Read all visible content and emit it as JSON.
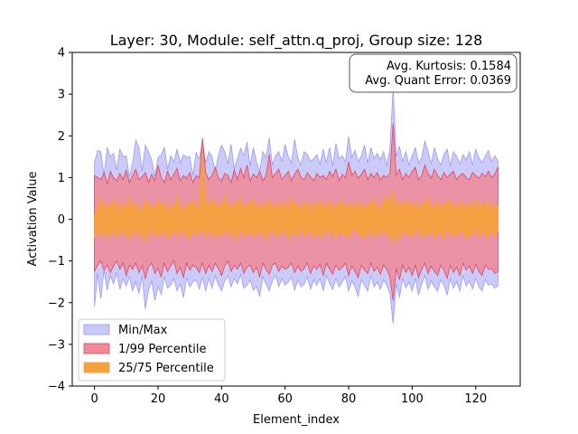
{
  "chart_data": {
    "type": "area",
    "title": "Layer: 30, Module: self_attn.q_proj,  Group size: 128",
    "xlabel": "Element_index",
    "ylabel": "Activation Value",
    "xlim": [
      -7,
      134
    ],
    "ylim": [
      -4,
      4
    ],
    "xticks": [
      0,
      20,
      40,
      60,
      80,
      100,
      120
    ],
    "yticks": [
      -4,
      -3,
      -2,
      -1,
      0,
      1,
      2,
      3,
      4
    ],
    "grid": false,
    "legend_position": "bottom-left",
    "annotation": {
      "lines": [
        "Avg. Kurtosis: 0.1584",
        "Avg. Quant Error: 0.0369"
      ],
      "position": "top-right"
    },
    "x": [
      0,
      1,
      2,
      3,
      4,
      5,
      6,
      7,
      8,
      9,
      10,
      11,
      12,
      13,
      14,
      15,
      16,
      17,
      18,
      19,
      20,
      21,
      22,
      23,
      24,
      25,
      26,
      27,
      28,
      29,
      30,
      31,
      32,
      33,
      34,
      35,
      36,
      37,
      38,
      39,
      40,
      41,
      42,
      43,
      44,
      45,
      46,
      47,
      48,
      49,
      50,
      51,
      52,
      53,
      54,
      55,
      56,
      57,
      58,
      59,
      60,
      61,
      62,
      63,
      64,
      65,
      66,
      67,
      68,
      69,
      70,
      71,
      72,
      73,
      74,
      75,
      76,
      77,
      78,
      79,
      80,
      81,
      82,
      83,
      84,
      85,
      86,
      87,
      88,
      89,
      90,
      91,
      92,
      93,
      94,
      95,
      96,
      97,
      98,
      99,
      100,
      101,
      102,
      103,
      104,
      105,
      106,
      107,
      108,
      109,
      110,
      111,
      112,
      113,
      114,
      115,
      116,
      117,
      118,
      119,
      120,
      121,
      122,
      123,
      124,
      125,
      126,
      127
    ],
    "series": [
      {
        "name": "Min/Max",
        "color": "#c8c8fa",
        "edge_color": "#9a9af0",
        "upper": [
          1.35,
          1.65,
          1.62,
          1.05,
          1.72,
          1.5,
          1.58,
          1.18,
          1.68,
          1.5,
          1.52,
          1.02,
          1.35,
          1.9,
          1.72,
          1.15,
          1.78,
          1.62,
          1.42,
          1.02,
          1.48,
          1.55,
          1.72,
          1.2,
          1.52,
          1.38,
          1.68,
          1.35,
          1.55,
          1.48,
          1.5,
          1.05,
          1.6,
          1.45,
          1.88,
          1.35,
          1.62,
          1.5,
          1.15,
          1.52,
          1.78,
          1.62,
          1.32,
          1.8,
          1.2,
          1.45,
          1.7,
          1.52,
          1.85,
          1.28,
          1.72,
          1.38,
          1.15,
          1.62,
          1.48,
          1.95,
          1.3,
          1.52,
          1.62,
          1.38,
          1.8,
          1.5,
          1.35,
          1.92,
          1.48,
          1.3,
          1.62,
          1.55,
          1.38,
          1.45,
          1.55,
          1.32,
          1.68,
          1.35,
          1.72,
          1.28,
          1.82,
          1.45,
          1.52,
          1.38,
          1.98,
          1.48,
          1.65,
          1.38,
          1.52,
          1.78,
          1.35,
          1.72,
          1.45,
          1.58,
          1.42,
          1.62,
          1.28,
          1.7,
          3.15,
          1.5,
          1.75,
          1.38,
          1.62,
          1.3,
          1.52,
          1.72,
          1.35,
          1.48,
          1.88,
          1.62,
          1.32,
          1.72,
          1.45,
          1.3,
          1.55,
          1.68,
          1.28,
          1.62,
          1.5,
          1.32,
          1.55,
          1.42,
          1.62,
          1.3,
          1.68,
          1.48,
          1.35,
          1.52,
          1.65,
          1.38,
          1.52,
          1.4
        ],
        "lower": [
          -2.1,
          -1.3,
          -1.9,
          -1.22,
          -1.7,
          -1.35,
          -1.55,
          -1.28,
          -1.68,
          -1.42,
          -1.6,
          -1.38,
          -1.72,
          -1.5,
          -1.78,
          -1.35,
          -2.15,
          -1.7,
          -1.48,
          -1.95,
          -1.62,
          -1.8,
          -1.38,
          -1.65,
          -1.58,
          -1.42,
          -1.72,
          -1.55,
          -1.88,
          -1.4,
          -1.62,
          -1.5,
          -1.45,
          -1.68,
          -1.38,
          -1.72,
          -1.42,
          -1.65,
          -1.35,
          -1.58,
          -1.72,
          -1.48,
          -1.35,
          -1.62,
          -1.42,
          -1.55,
          -1.32,
          -1.65,
          -1.58,
          -1.45,
          -1.7,
          -1.62,
          -1.85,
          -1.38,
          -1.55,
          -1.72,
          -1.48,
          -1.35,
          -1.62,
          -1.42,
          -1.58,
          -1.5,
          -1.38,
          -1.7,
          -1.45,
          -1.62,
          -1.55,
          -1.38,
          -1.68,
          -1.45,
          -1.58,
          -1.42,
          -1.72,
          -1.35,
          -1.55,
          -1.68,
          -1.42,
          -1.62,
          -1.5,
          -1.38,
          -1.72,
          -1.48,
          -1.62,
          -1.85,
          -1.45,
          -1.58,
          -1.72,
          -1.35,
          -1.62,
          -1.5,
          -1.68,
          -1.45,
          -1.58,
          -1.78,
          -2.5,
          -1.55,
          -1.88,
          -1.42,
          -1.65,
          -1.5,
          -1.72,
          -1.42,
          -1.82,
          -1.55,
          -1.35,
          -1.68,
          -1.48,
          -1.62,
          -1.72,
          -1.45,
          -1.58,
          -1.82,
          -1.42,
          -1.65,
          -1.5,
          -1.72,
          -1.35,
          -1.6,
          -1.48,
          -1.68,
          -1.42,
          -1.62,
          -1.72,
          -1.45,
          -1.58,
          -1.55,
          -1.65,
          -1.6
        ]
      },
      {
        "name": "1/99 Percentile",
        "color": "#f08a96",
        "edge_color": "#e04560",
        "upper": [
          1.05,
          1.0,
          0.95,
          1.12,
          0.85,
          1.15,
          1.0,
          0.92,
          1.1,
          0.95,
          1.18,
          0.88,
          1.05,
          1.2,
          0.95,
          1.02,
          1.12,
          0.88,
          1.08,
          0.92,
          1.3,
          1.0,
          0.88,
          1.15,
          0.95,
          1.08,
          1.22,
          0.92,
          1.05,
          0.98,
          1.12,
          0.88,
          1.05,
          1.0,
          1.95,
          1.12,
          0.95,
          1.05,
          1.25,
          1.0,
          0.92,
          1.1,
          1.05,
          0.88,
          1.18,
          0.95,
          1.22,
          1.0,
          1.3,
          0.92,
          1.08,
          1.0,
          1.15,
          0.92,
          1.05,
          1.55,
          1.0,
          1.1,
          1.2,
          0.95,
          1.05,
          1.15,
          0.92,
          1.08,
          1.2,
          1.0,
          0.95,
          1.12,
          1.02,
          0.92,
          1.1,
          1.0,
          1.05,
          0.95,
          1.15,
          1.02,
          1.2,
          0.92,
          1.08,
          1.0,
          1.38,
          1.05,
          1.15,
          0.98,
          1.08,
          1.2,
          0.95,
          1.1,
          1.0,
          1.12,
          0.95,
          1.05,
          1.0,
          1.1,
          2.3,
          1.05,
          1.2,
          0.95,
          1.1,
          1.0,
          1.15,
          1.25,
          0.95,
          1.05,
          1.3,
          1.1,
          0.98,
          1.2,
          1.05,
          0.95,
          1.12,
          1.0,
          1.08,
          1.15,
          0.95,
          1.05,
          1.1,
          1.0,
          0.95,
          1.12,
          1.05,
          0.98,
          1.1,
          1.02,
          1.15,
          1.0,
          1.08,
          1.25
        ],
        "lower": [
          -1.25,
          -1.1,
          -1.0,
          -1.22,
          -1.1,
          -1.28,
          -1.12,
          -1.0,
          -1.2,
          -1.05,
          -1.35,
          -1.1,
          -1.2,
          -1.05,
          -1.28,
          -1.12,
          -1.42,
          -1.15,
          -1.05,
          -1.3,
          -1.18,
          -1.38,
          -1.05,
          -1.25,
          -1.12,
          -1.0,
          -1.3,
          -1.15,
          -1.4,
          -1.05,
          -1.22,
          -1.1,
          -1.15,
          -1.28,
          -1.05,
          -1.3,
          -1.1,
          -1.25,
          -1.05,
          -1.18,
          -1.35,
          -1.12,
          -1.0,
          -1.25,
          -1.1,
          -1.2,
          -1.05,
          -1.3,
          -1.15,
          -1.1,
          -1.28,
          -1.15,
          -1.38,
          -1.05,
          -1.2,
          -1.32,
          -1.1,
          -1.05,
          -1.25,
          -1.12,
          -1.2,
          -1.15,
          -1.05,
          -1.28,
          -1.12,
          -1.25,
          -1.18,
          -1.05,
          -1.3,
          -1.12,
          -1.2,
          -1.08,
          -1.35,
          -1.05,
          -1.2,
          -1.32,
          -1.1,
          -1.22,
          -1.15,
          -1.05,
          -1.35,
          -1.12,
          -1.25,
          -1.4,
          -1.1,
          -1.22,
          -1.3,
          -1.05,
          -1.25,
          -1.15,
          -1.32,
          -1.1,
          -1.2,
          -1.38,
          -1.95,
          -1.18,
          -1.45,
          -1.1,
          -1.28,
          -1.15,
          -1.35,
          -1.1,
          -1.4,
          -1.2,
          -1.05,
          -1.3,
          -1.12,
          -1.25,
          -1.35,
          -1.1,
          -1.22,
          -1.42,
          -1.1,
          -1.28,
          -1.15,
          -1.35,
          -1.05,
          -1.22,
          -1.12,
          -1.3,
          -1.08,
          -1.25,
          -1.35,
          -1.1,
          -1.2,
          -1.18,
          -1.3,
          -1.25
        ]
      },
      {
        "name": "25/75 Percentile",
        "color": "#f5a23c",
        "edge_color": "#f5a23c",
        "upper": [
          0.1,
          0.25,
          0.55,
          0.2,
          0.4,
          0.3,
          0.5,
          0.15,
          0.45,
          0.25,
          0.35,
          0.55,
          0.2,
          0.42,
          0.3,
          0.15,
          0.5,
          0.25,
          0.38,
          0.2,
          0.48,
          0.3,
          0.45,
          0.15,
          0.35,
          0.25,
          0.55,
          0.3,
          0.2,
          0.4,
          0.3,
          0.5,
          0.25,
          0.35,
          1.65,
          0.45,
          0.3,
          0.55,
          0.25,
          0.4,
          0.3,
          0.6,
          0.35,
          0.25,
          0.45,
          0.3,
          0.55,
          0.2,
          0.4,
          0.35,
          0.5,
          0.25,
          0.3,
          0.45,
          0.2,
          0.5,
          0.35,
          0.25,
          0.4,
          0.3,
          0.45,
          0.2,
          0.55,
          0.3,
          0.4,
          0.25,
          0.35,
          0.45,
          0.2,
          0.4,
          0.3,
          0.5,
          0.25,
          0.35,
          0.45,
          0.2,
          0.4,
          0.3,
          0.5,
          0.25,
          0.35,
          0.4,
          0.2,
          0.45,
          0.3,
          0.25,
          0.4,
          0.35,
          0.5,
          0.25,
          0.3,
          0.45,
          0.55,
          0.35,
          0.7,
          0.3,
          0.45,
          0.25,
          0.5,
          0.35,
          0.3,
          0.45,
          0.2,
          0.4,
          0.35,
          0.55,
          0.25,
          0.3,
          0.45,
          0.2,
          0.4,
          0.35,
          0.5,
          0.25,
          0.3,
          0.45,
          0.2,
          0.4,
          0.35,
          0.3,
          0.5,
          0.25,
          0.4,
          0.3,
          0.45,
          0.2,
          0.35,
          0.3
        ],
        "lower": [
          -0.45,
          -0.3,
          -0.4,
          -0.25,
          -0.5,
          -0.3,
          -0.35,
          -0.45,
          -0.2,
          -0.4,
          -0.3,
          -0.5,
          -0.35,
          -0.25,
          -0.45,
          -0.3,
          -0.55,
          -0.35,
          -0.2,
          -0.45,
          -0.3,
          -0.4,
          -0.25,
          -0.5,
          -0.35,
          -0.3,
          -0.45,
          -0.2,
          -0.4,
          -0.35,
          -0.5,
          -0.25,
          -0.4,
          -0.3,
          -0.2,
          -0.45,
          -0.35,
          -0.25,
          -0.5,
          -0.3,
          -0.4,
          -0.35,
          -0.25,
          -0.45,
          -0.3,
          -0.5,
          -0.2,
          -0.4,
          -0.35,
          -0.3,
          -0.45,
          -0.25,
          -0.4,
          -0.3,
          -0.5,
          -0.35,
          -0.2,
          -0.45,
          -0.3,
          -0.4,
          -0.25,
          -0.5,
          -0.35,
          -0.3,
          -0.45,
          -0.2,
          -0.4,
          -0.35,
          -0.25,
          -0.5,
          -0.3,
          -0.4,
          -0.45,
          -0.2,
          -0.35,
          -0.3,
          -0.5,
          -0.25,
          -0.4,
          -0.35,
          -0.45,
          -0.3,
          -0.2,
          -0.4,
          -0.35,
          -0.5,
          -0.25,
          -0.45,
          -0.3,
          -0.4,
          -0.35,
          -0.2,
          -0.45,
          -0.3,
          -0.6,
          -0.35,
          -0.5,
          -0.25,
          -0.4,
          -0.3,
          -0.45,
          -0.35,
          -0.2,
          -0.5,
          -0.3,
          -0.4,
          -0.25,
          -0.45,
          -0.35,
          -0.3,
          -0.5,
          -0.2,
          -0.4,
          -0.35,
          -0.45,
          -0.25,
          -0.3,
          -0.5,
          -0.35,
          -0.4,
          -0.2,
          -0.45,
          -0.3,
          -0.35,
          -0.5,
          -0.25,
          -0.4,
          -0.3
        ]
      }
    ]
  }
}
